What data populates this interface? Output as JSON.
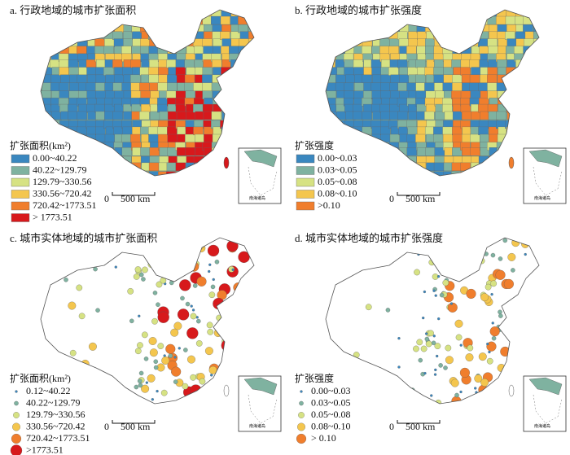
{
  "panels": [
    {
      "title": "a. 行政地域的城市扩张面积",
      "style": "choropleth",
      "legend": {
        "title": "扩张面积(km²)",
        "marker": "rect",
        "items": [
          {
            "label": "0.00~40.22",
            "color": "#3a87bf"
          },
          {
            "label": "40.22~129.79",
            "color": "#7fb2a0"
          },
          {
            "label": "129.79~330.56",
            "color": "#d6e283"
          },
          {
            "label": "330.56~720.42",
            "color": "#f4c64e"
          },
          {
            "label": "720.42~1773.51",
            "color": "#f07e2d"
          },
          {
            "label": "> 1773.51",
            "color": "#d7191c"
          }
        ]
      },
      "scale": {
        "zero": "0",
        "label": "500 km"
      },
      "inset": "南海诸岛"
    },
    {
      "title": "b. 行政地域的城市扩张强度",
      "style": "choropleth",
      "legend": {
        "title": "扩张强度",
        "marker": "rect",
        "items": [
          {
            "label": "0.00~0.03",
            "color": "#3a87bf"
          },
          {
            "label": "0.03~0.05",
            "color": "#7fb2a0"
          },
          {
            "label": "0.05~0.08",
            "color": "#d6e283"
          },
          {
            "label": "0.08~0.10",
            "color": "#f4c64e"
          },
          {
            "label": ">0.10",
            "color": "#f07e2d"
          }
        ]
      },
      "scale": {
        "zero": "0",
        "label": "500 km"
      },
      "inset": "南海诸岛"
    },
    {
      "title": "c. 城市实体地域的城市扩张面积",
      "style": "dots",
      "legend": {
        "title": "扩张面积(km²)",
        "marker": "circle",
        "items": [
          {
            "label": "0.12~40.22",
            "color": "#3a87bf"
          },
          {
            "label": "40.22~129.79",
            "color": "#7fb2a0"
          },
          {
            "label": "129.79~330.56",
            "color": "#d6e283"
          },
          {
            "label": "330.56~720.42",
            "color": "#f4c64e"
          },
          {
            "label": "720.42~1773.51",
            "color": "#f07e2d"
          },
          {
            "label": ">1773.51",
            "color": "#d7191c"
          }
        ]
      },
      "scale": {
        "zero": "0",
        "label": "500 km"
      },
      "inset": "南海诸岛"
    },
    {
      "title": "d. 城市实体地域的城市扩张强度",
      "style": "dots",
      "legend": {
        "title": "扩张强度",
        "marker": "circle",
        "items": [
          {
            "label": "0.00~0.03",
            "color": "#3a87bf"
          },
          {
            "label": "0.03~0.05",
            "color": "#7fb2a0"
          },
          {
            "label": "0.05~0.08",
            "color": "#d6e283"
          },
          {
            "label": "0.08~0.10",
            "color": "#f4c64e"
          },
          {
            "label": "> 0.10",
            "color": "#f07e2d"
          }
        ]
      },
      "scale": {
        "zero": "0",
        "label": "500 km"
      },
      "inset": "南海诸岛"
    }
  ]
}
